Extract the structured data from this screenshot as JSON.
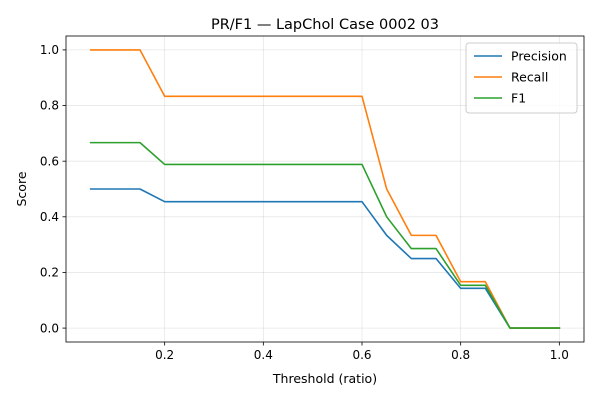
{
  "chart_data": {
    "type": "line",
    "title": "PR/F1 — LapChol Case 0002 03",
    "xlabel": "Threshold (ratio)",
    "ylabel": "Score",
    "xlim": [
      0.0,
      1.05
    ],
    "ylim": [
      -0.05,
      1.05
    ],
    "xticks": [
      0.2,
      0.4,
      0.6,
      0.8,
      1.0
    ],
    "xtick_labels": [
      "0.2",
      "0.4",
      "0.6",
      "0.8",
      "1.0"
    ],
    "yticks": [
      0.0,
      0.2,
      0.4,
      0.6,
      0.8,
      1.0
    ],
    "ytick_labels": [
      "0.0",
      "0.2",
      "0.4",
      "0.6",
      "0.8",
      "1.0"
    ],
    "grid": true,
    "legend_position": "top-right",
    "x": [
      0.05,
      0.1,
      0.15,
      0.2,
      0.25,
      0.3,
      0.35,
      0.4,
      0.45,
      0.5,
      0.55,
      0.6,
      0.65,
      0.7,
      0.75,
      0.8,
      0.85,
      0.9,
      0.95,
      1.0
    ],
    "series": [
      {
        "name": "Precision",
        "color": "#1f77b4",
        "values": [
          0.5,
          0.5,
          0.5,
          0.4545,
          0.4545,
          0.4545,
          0.4545,
          0.4545,
          0.4545,
          0.4545,
          0.4545,
          0.4545,
          0.3333,
          0.25,
          0.25,
          0.1429,
          0.1429,
          0.0,
          0.0,
          0.0
        ]
      },
      {
        "name": "Recall",
        "color": "#ff7f0e",
        "values": [
          1.0,
          1.0,
          1.0,
          0.8333,
          0.8333,
          0.8333,
          0.8333,
          0.8333,
          0.8333,
          0.8333,
          0.8333,
          0.8333,
          0.5,
          0.3333,
          0.3333,
          0.1667,
          0.1667,
          0.0,
          0.0,
          0.0
        ]
      },
      {
        "name": "F1",
        "color": "#2ca02c",
        "values": [
          0.6667,
          0.6667,
          0.6667,
          0.5882,
          0.5882,
          0.5882,
          0.5882,
          0.5882,
          0.5882,
          0.5882,
          0.5882,
          0.5882,
          0.4,
          0.2857,
          0.2857,
          0.1538,
          0.1538,
          0.0,
          0.0,
          0.0
        ]
      }
    ]
  }
}
